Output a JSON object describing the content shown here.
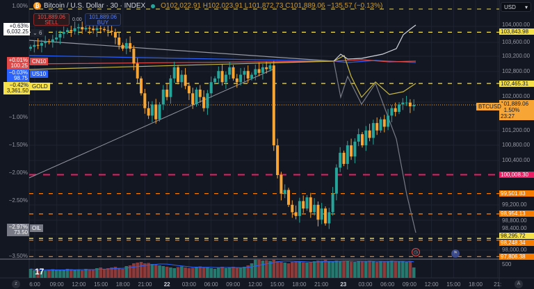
{
  "header": {
    "title": "Bitcoin / U.S. Dollar · 30 · INDEX",
    "coin_icon": "bitcoin-icon",
    "ohlc": "O102,022.91 H102,023.91 L101,872.73 C101,889.06 −135.57 (−0.13%)",
    "top_percent": "1.00%"
  },
  "trade": {
    "sell_price": "101,889.06",
    "sell_label": "SELL",
    "spread": "0.00",
    "buy_price": "101,889.06",
    "buy_label": "BUY"
  },
  "compare": [
    {
      "symbol": "",
      "pct": "+0.63%",
      "value": "6,032.25",
      "color": "#ffffff"
    },
    {
      "symbol": "CN10",
      "pct": "+0.01%",
      "value": "100.25",
      "color": "#e04848"
    },
    {
      "symbol": "US10",
      "pct": "−0.03%",
      "value": "98.75",
      "color": "#2962ff"
    },
    {
      "symbol": "GOLD",
      "pct": "−0.42%",
      "value": "3,361.50",
      "color": "#f5e14a"
    },
    {
      "symbol": "OIL",
      "pct": "−2.97%",
      "value": "73.50",
      "color": "#787b86"
    }
  ],
  "collapse_label": "6",
  "currency": "USD",
  "price_axis": [
    "104,000.00",
    "103,600.00",
    "103,200.00",
    "102,800.00",
    "102,000.00",
    "101,200.00",
    "100,800.00",
    "100,400.00",
    "99,200.00",
    "98,800.00",
    "98,400.00",
    "98,000.00"
  ],
  "volume_axis": "500",
  "percent_axis": [
    "−1.00%",
    "−1.50%",
    "−2.00%",
    "−2.50%",
    "−3.50%"
  ],
  "time_axis": [
    "6:00",
    "09:00",
    "12:00",
    "15:00",
    "18:00",
    "21:00",
    "22",
    "03:00",
    "06:00",
    "09:00",
    "12:00",
    "15:00",
    "18:00",
    "21:00",
    "23",
    "03:00",
    "06:00",
    "09:00",
    "12:00",
    "15:00",
    "18:00",
    "21:"
  ],
  "levels": [
    {
      "price": 103843.98,
      "label": "103,843.98",
      "color": "#f5e14a"
    },
    {
      "price": 102465.31,
      "label": "102,465.31",
      "color": "#f5e14a"
    },
    {
      "price": 100008.3,
      "label": "100,008.30",
      "color": "#e91e63"
    },
    {
      "price": 99501.83,
      "label": "99,501.83",
      "color": "#f57c00"
    },
    {
      "price": 98954.13,
      "label": "98,954.13",
      "color": "#f57c00"
    },
    {
      "price": 98295.72,
      "label": "98,295.72",
      "color": "#f5e14a"
    },
    {
      "price": 98248.34,
      "label": "98,248.34",
      "color": "#f57c00"
    },
    {
      "price": 97806.38,
      "label": "97,806.38",
      "color": "#f57c00"
    }
  ],
  "last_price": {
    "symbol": "BTCUSD",
    "price": "101,889.06",
    "change": "−1.50%",
    "countdown": "23:27",
    "color": "#f7a635"
  },
  "colors": {
    "up": "#26a69a",
    "down": "#f7a635",
    "vol_up": "#26796f",
    "vol_down": "#8c3a3a",
    "bg": "#131722"
  },
  "chart_data": {
    "type": "candlestick",
    "interval": "30",
    "ylim": [
      97700,
      104500
    ],
    "first_open": 103400,
    "closes": [
      103450,
      103500,
      103480,
      103550,
      103600,
      103580,
      103650,
      103700,
      103800,
      103850,
      103900,
      103870,
      103950,
      103980,
      103920,
      103960,
      103940,
      103900,
      103950,
      103930,
      103900,
      103880,
      103850,
      103700,
      103500,
      103400,
      103550,
      103400,
      103000,
      102600,
      102200,
      101800,
      101600,
      101900,
      101500,
      101900,
      102300,
      102100,
      102600,
      102900,
      102500,
      102700,
      102400,
      102200,
      101900,
      102300,
      102100,
      101800,
      102200,
      102500,
      102600,
      102800,
      102500,
      102700,
      102900,
      102600,
      102500,
      102700,
      102800,
      102600,
      102700,
      102850,
      102750,
      102900,
      102850,
      102950,
      100800,
      100000,
      99500,
      99600,
      99200,
      99000,
      98900,
      99300,
      99100,
      99400,
      99000,
      99200,
      98800,
      99100,
      98700,
      99000,
      99500,
      100200,
      100600,
      100300,
      100800,
      100500,
      100900,
      101100,
      100800,
      101200,
      101000,
      101400,
      101200,
      101500,
      101300,
      101600,
      101800,
      101700,
      101900,
      101950,
      101950,
      101850,
      101889
    ],
    "volumes": [
      260,
      220,
      240,
      200,
      210,
      240,
      250,
      230,
      220,
      240,
      260,
      250,
      230,
      240,
      220,
      260,
      240,
      250,
      280,
      300,
      260,
      280,
      300,
      320,
      280,
      260,
      340,
      360,
      420,
      440,
      460,
      420,
      430,
      400,
      380,
      360,
      340,
      320,
      300,
      280,
      310,
      330,
      300,
      280,
      290,
      320,
      330,
      310,
      300,
      280,
      260,
      300,
      320,
      280,
      300,
      320,
      300,
      290,
      320,
      360,
      420,
      520,
      520,
      500,
      510,
      490,
      520,
      480,
      460,
      440,
      420,
      460,
      480,
      470,
      450,
      440,
      460,
      480,
      500,
      490,
      520,
      480,
      470,
      500,
      490,
      480,
      500,
      470,
      460,
      480,
      490,
      470,
      500,
      480,
      460,
      490,
      480,
      470,
      500,
      480,
      470,
      490,
      460,
      480,
      300
    ]
  }
}
